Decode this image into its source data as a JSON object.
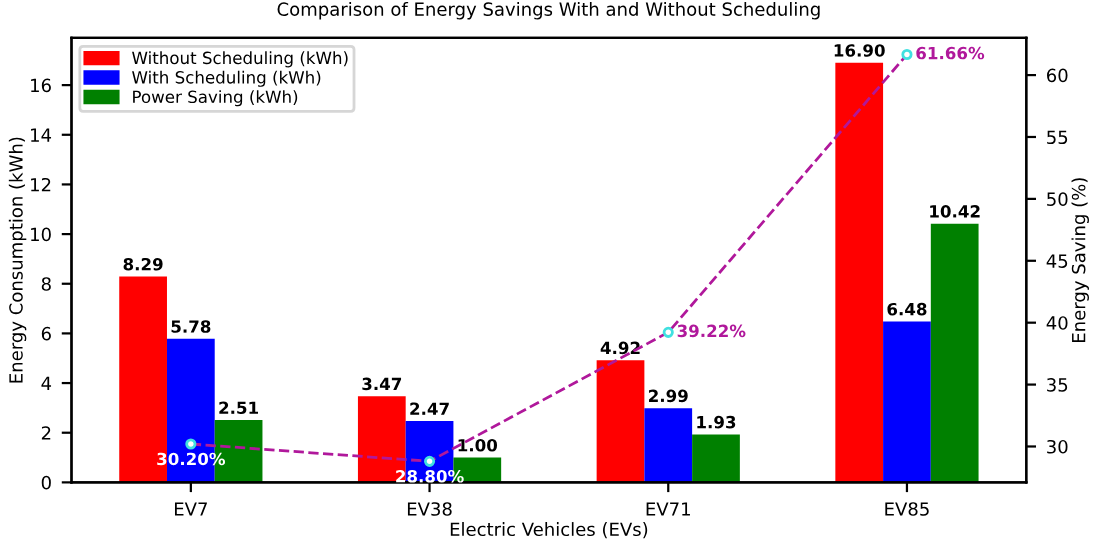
{
  "chart_data": {
    "type": "bar",
    "title": "Comparison of Energy Savings With and Without Scheduling",
    "xlabel": "Electric Vehicles (EVs)",
    "ylabel": "Energy Consumption (kWh)",
    "y2label": "Energy Saving (%)",
    "categories": [
      "EV7",
      "EV38",
      "EV71",
      "EV85"
    ],
    "series": [
      {
        "name": "Without Scheduling (kWh)",
        "color": "#ff0000",
        "values": [
          8.29,
          3.47,
          4.92,
          16.9
        ],
        "value_labels": [
          "8.29",
          "3.47",
          "4.92",
          "16.90"
        ]
      },
      {
        "name": "With Scheduling (kWh)",
        "color": "#0000ff",
        "values": [
          5.78,
          2.47,
          2.99,
          6.48
        ],
        "value_labels": [
          "5.78",
          "2.47",
          "2.99",
          "6.48"
        ]
      },
      {
        "name": "Power Saving (kWh)",
        "color": "#008000",
        "values": [
          2.51,
          1.0,
          1.93,
          10.42
        ],
        "value_labels": [
          "2.51",
          "1.00",
          "1.93",
          "10.42"
        ]
      },
      {
        "type": "line",
        "axis": "y2",
        "color": "#b0189b",
        "line_style": "dashed",
        "marker": "circle",
        "values": [
          30.2,
          28.8,
          39.22,
          61.66
        ],
        "value_labels": [
          "30.20%",
          "28.80%",
          "39.22%",
          "61.66%"
        ]
      }
    ],
    "ylim": [
      0,
      17.9
    ],
    "yticks": [
      0,
      2,
      4,
      6,
      8,
      10,
      12,
      14,
      16
    ],
    "y2lim": [
      27.1,
      63
    ],
    "y2ticks": [
      30,
      35,
      40,
      45,
      50,
      55,
      60
    ],
    "legend": "top left",
    "grid": false
  }
}
